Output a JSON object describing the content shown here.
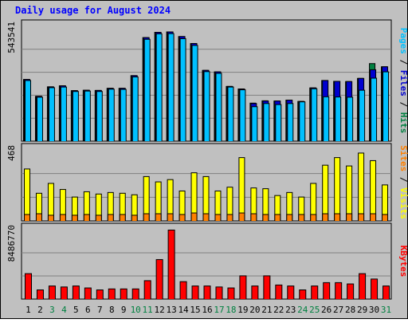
{
  "colors": {
    "page": "#c0c0c0",
    "plot": "#c0c0c0",
    "grid": "#808080",
    "title": "#0000ff",
    "hits": "#008040",
    "files": "#0000d0",
    "pages": "#00c0ff",
    "visits": "#ffff00",
    "sites": "#ff8000",
    "kbytes": "#ff0000",
    "weekend_day": "#008040",
    "weekday": "#000000"
  },
  "chart_data": {
    "type": "bar",
    "title": "Daily usage for August 2024",
    "categories": [
      "1",
      "2",
      "3",
      "4",
      "5",
      "6",
      "7",
      "8",
      "9",
      "10",
      "11",
      "12",
      "13",
      "14",
      "15",
      "16",
      "17",
      "18",
      "19",
      "20",
      "21",
      "22",
      "23",
      "24",
      "25",
      "26",
      "27",
      "28",
      "29",
      "30",
      "31"
    ],
    "weekend_days": [
      "3",
      "4",
      "10",
      "11",
      "17",
      "18",
      "24",
      "25",
      "31"
    ],
    "panels": [
      {
        "max_label": "543541",
        "ylim": [
          0,
          543541
        ],
        "series": [
          {
            "name": "Hits",
            "color": "#008040",
            "values": [
              294000,
              214000,
              259000,
              264000,
              241000,
              243000,
              242000,
              252000,
              252000,
              312000,
              492000,
              517000,
              519000,
              497000,
              464000,
              337000,
              330000,
              261000,
              249000,
              182000,
              193000,
              192000,
              196000,
              190000,
              254000,
              289000,
              285000,
              284000,
              299000,
              369000,
              354000
            ]
          },
          {
            "name": "Files",
            "color": "#0000d0",
            "values": [
              294000,
              214000,
              259000,
              264000,
              241000,
              243000,
              242000,
              252000,
              252000,
              312000,
              492000,
              517000,
              519000,
              497000,
              464000,
              337000,
              330000,
              261000,
              249000,
              180000,
              192000,
              192000,
              196000,
              190000,
              254000,
              289000,
              285000,
              284000,
              299000,
              340000,
              354000
            ]
          },
          {
            "name": "Pages",
            "color": "#00c0ff",
            "values": [
              289000,
              210000,
              255000,
              258000,
              237000,
              239000,
              237000,
              248000,
              247000,
              306000,
              484000,
              510000,
              511000,
              487000,
              455000,
              331000,
              323000,
              258000,
              245000,
              165000,
              180000,
              175000,
              180000,
              188000,
              250000,
              212000,
              211000,
              210000,
              243000,
              300000,
              330000
            ]
          }
        ]
      },
      {
        "max_label": "468",
        "ylim": [
          0,
          468
        ],
        "series": [
          {
            "name": "Visits",
            "color": "#ffff00",
            "values": [
              345,
              185,
              250,
              210,
              160,
              195,
              180,
              190,
              185,
              175,
              295,
              260,
              275,
              200,
              320,
              295,
              200,
              225,
              420,
              220,
              215,
              170,
              190,
              160,
              250,
              370,
              420,
              365,
              450,
              400,
              240
            ]
          },
          {
            "name": "Sites",
            "color": "#ff8000",
            "values": [
              45,
              50,
              40,
              45,
              40,
              45,
              40,
              45,
              45,
              40,
              50,
              50,
              50,
              45,
              55,
              50,
              45,
              45,
              55,
              50,
              45,
              45,
              45,
              45,
              45,
              50,
              50,
              50,
              50,
              50,
              45
            ]
          }
        ]
      },
      {
        "max_label": "8486770",
        "ylim": [
          0,
          8486770
        ],
        "series": [
          {
            "name": "KBytes",
            "color": "#ff0000",
            "values": [
              3160000,
              1170000,
              1650000,
              1530000,
              1650000,
              1410000,
              1170000,
              1290000,
              1290000,
              1290000,
              2300000,
              4880000,
              8490000,
              2180000,
              1650000,
              1650000,
              1530000,
              1410000,
              2890000,
              1650000,
              2890000,
              1770000,
              1650000,
              1170000,
              1650000,
              2060000,
              2060000,
              1900000,
              3160000,
              2500000,
              1650000
            ]
          }
        ]
      }
    ],
    "right_labels": [
      {
        "parts": [
          {
            "text": "Pages",
            "color": "#00c0ff"
          },
          {
            "text": " / ",
            "color": "#000000"
          },
          {
            "text": "Files",
            "color": "#0000d0"
          },
          {
            "text": " / ",
            "color": "#000000"
          },
          {
            "text": "Hits",
            "color": "#008040"
          }
        ]
      },
      {
        "parts": [
          {
            "text": "Sites",
            "color": "#ff8000"
          },
          {
            "text": " / ",
            "color": "#000000"
          },
          {
            "text": "Visits",
            "color": "#ffff00"
          }
        ]
      },
      {
        "parts": [
          {
            "text": "KBytes",
            "color": "#ff0000"
          }
        ]
      }
    ]
  }
}
